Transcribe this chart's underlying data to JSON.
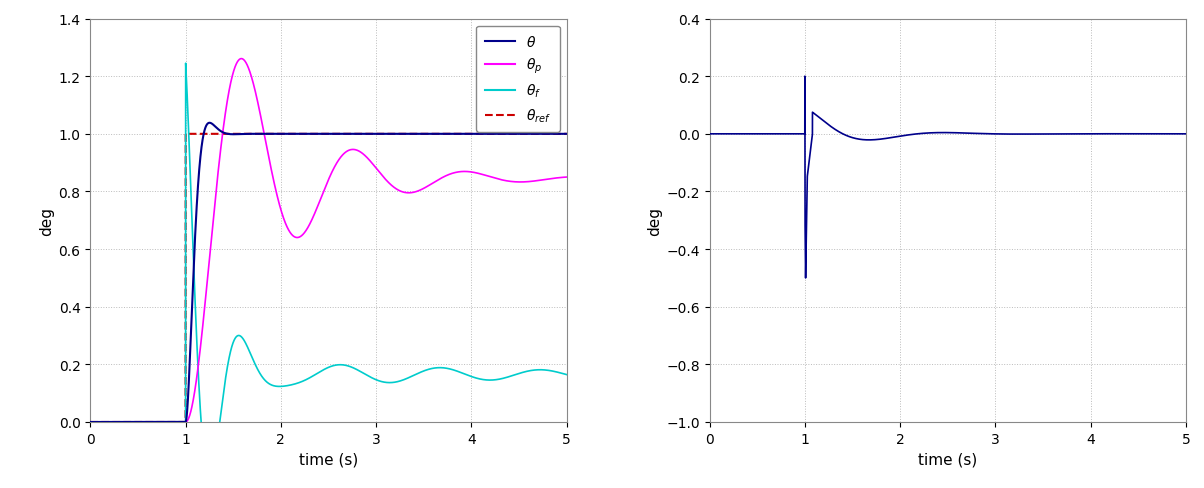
{
  "xlim": [
    0,
    5
  ],
  "ylim_left": [
    0,
    1.4
  ],
  "ylim_right": [
    -1,
    0.4
  ],
  "xlabel": "time (s)",
  "ylabel": "deg",
  "step_time": 1.0,
  "colors": {
    "theta": "#00008B",
    "theta_p": "#FF00FF",
    "theta_f": "#00CCCC",
    "theta_ref": "#CC0000",
    "error": "#00008B"
  },
  "grid_color": "#aaaaaa",
  "background_color": "#ffffff",
  "figsize": [
    12.04,
    4.89
  ],
  "dpi": 100
}
